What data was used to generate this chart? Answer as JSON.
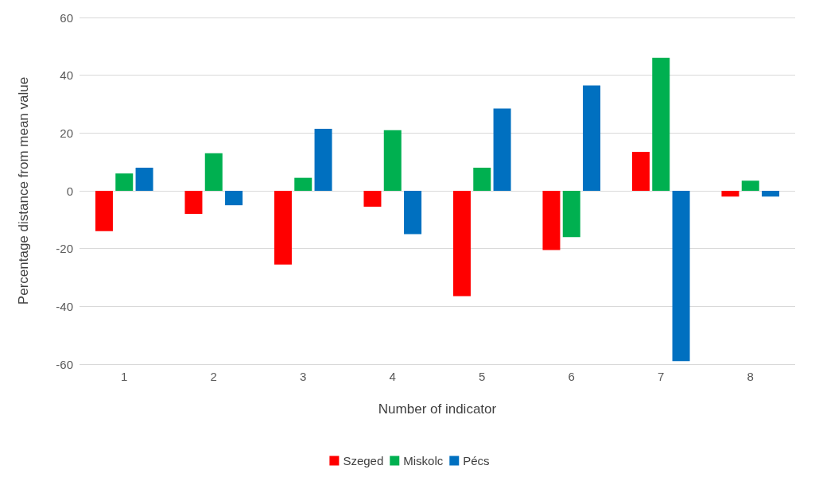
{
  "chart_data": {
    "type": "bar",
    "xlabel": "Number of indicator",
    "ylabel": "Percentage distance from mean value",
    "categories": [
      "1",
      "2",
      "3",
      "4",
      "5",
      "6",
      "7",
      "8"
    ],
    "series": [
      {
        "name": "Szeged",
        "color": "#ff0000",
        "values": [
          -14,
          -8,
          -25.5,
          -5.5,
          -36.5,
          -20.5,
          13.5,
          -2
        ]
      },
      {
        "name": "Miskolc",
        "color": "#00b050",
        "values": [
          6,
          13,
          4.5,
          21,
          8,
          -16,
          46,
          3.5
        ]
      },
      {
        "name": "Pécs",
        "color": "#0070c0",
        "values": [
          8,
          -5,
          21.5,
          -15,
          28.5,
          36.5,
          -59,
          -2
        ]
      }
    ],
    "ylim": [
      -60,
      60
    ],
    "yticks": [
      -60,
      -40,
      -20,
      0,
      20,
      40,
      60
    ],
    "grid": "y",
    "legend": "bottom"
  }
}
